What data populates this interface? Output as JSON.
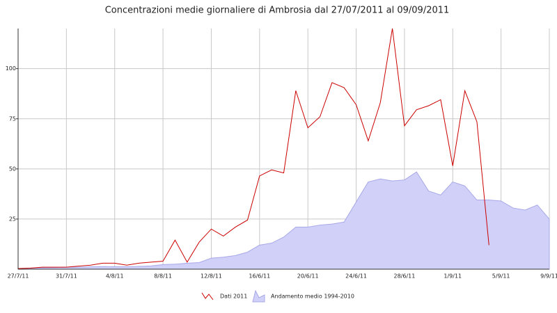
{
  "chart_data": {
    "type": "line",
    "title": "Concentrazioni medie giornaliere di Ambrosia dal 27/07/2011 al 09/09/2011",
    "categories": [
      "27/7/11",
      null,
      null,
      null,
      "31/7/11",
      null,
      null,
      null,
      "4/8/11",
      null,
      null,
      null,
      "8/8/11",
      null,
      null,
      null,
      "12/8/11",
      null,
      null,
      null,
      "16/6/11",
      null,
      null,
      null,
      "20/6/11",
      null,
      null,
      null,
      "24/6/11",
      null,
      null,
      null,
      "28/6/11",
      null,
      null,
      null,
      "1/9/11",
      null,
      null,
      null,
      "5/9/11",
      null,
      null,
      null,
      "9/9/11"
    ],
    "ylim": [
      0,
      120
    ],
    "yticks": [
      25,
      50,
      75,
      100
    ],
    "grid": true,
    "series": [
      {
        "name": "Dati 2011",
        "color": "#cc0000",
        "kind": "line",
        "values": [
          0.3,
          0.5,
          1,
          1,
          1,
          1.5,
          2,
          3,
          3,
          2,
          3,
          3.5,
          4,
          14.5,
          3.5,
          13.5,
          20,
          16.5,
          21,
          24.5,
          46.5,
          49.5,
          48,
          89,
          70.5,
          76,
          93,
          90.5,
          82,
          64,
          83,
          120,
          71.5,
          79.5,
          81.5,
          84.5,
          51.5,
          89,
          73.5,
          12,
          null,
          null,
          null,
          null,
          null
        ]
      },
      {
        "name": "Andamento medio 1994-2010",
        "color": "#d0d0f8",
        "kind": "area",
        "values": [
          0.3,
          0.5,
          0.7,
          0.8,
          1,
          1,
          1.2,
          1.3,
          1.2,
          1.2,
          1.4,
          1.6,
          2.3,
          2.5,
          3,
          3.3,
          5.5,
          6,
          6.8,
          8.5,
          12,
          13,
          16,
          21,
          21,
          22,
          22.5,
          23.5,
          33.5,
          43.5,
          45,
          44,
          44.5,
          48.5,
          39,
          37,
          43.5,
          41.5,
          34.5,
          34.5,
          34,
          30.5,
          29.5,
          32,
          25
        ]
      }
    ]
  }
}
